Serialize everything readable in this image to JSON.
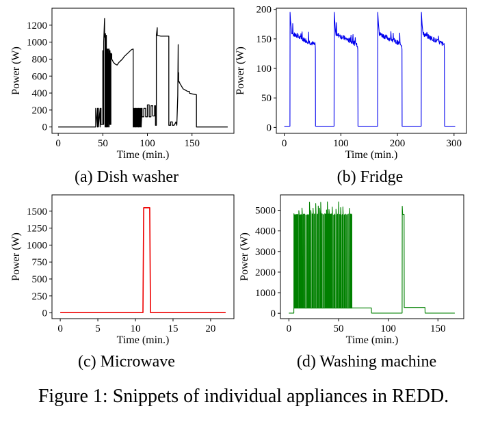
{
  "figure": {
    "caption": "Figure 1: Snippets of individual appliances in REDD."
  },
  "chart_data": [
    {
      "type": "line",
      "caption": "(a) Dish washer",
      "xlabel": "Time (min.)",
      "ylabel": "Power (W)",
      "xlim": [
        -7,
        197
      ],
      "ylim": [
        -75,
        1400
      ],
      "xticks": [
        0,
        50,
        100,
        150
      ],
      "yticks": [
        0,
        200,
        400,
        600,
        800,
        1000,
        1200
      ],
      "color": "#000000",
      "series": [
        {
          "x": [
            0,
            42,
            42,
            44,
            44,
            45,
            45,
            47,
            47,
            48,
            48,
            50,
            50,
            51,
            51,
            52,
            52,
            52.5,
            52.5,
            53,
            53,
            54,
            54,
            55,
            55,
            56,
            56,
            57,
            57,
            58,
            58,
            59,
            59,
            60,
            60,
            62,
            64,
            66,
            68,
            70,
            72,
            74,
            76,
            78,
            80,
            82,
            84,
            84,
            85,
            85,
            86,
            86,
            87,
            87,
            88,
            88,
            89,
            89,
            90,
            90,
            91,
            91,
            92,
            92,
            93,
            93,
            94,
            94,
            96,
            96,
            98,
            98,
            100,
            100,
            102,
            102,
            104,
            104,
            106,
            106,
            108,
            108,
            109,
            109,
            110,
            110,
            111,
            111,
            115,
            120,
            124,
            124,
            126,
            126,
            128,
            128,
            130,
            130,
            132,
            132,
            133,
            133,
            134,
            134,
            134.5,
            134.5,
            135,
            135,
            136,
            136,
            140,
            145,
            147,
            147,
            150,
            155,
            155,
            190
          ],
          "y": [
            0,
            0,
            220,
            0,
            220,
            220,
            0,
            220,
            0,
            220,
            30,
            30,
            900,
            30,
            1000,
            1280,
            1060,
            1060,
            0,
            1100,
            0,
            1080,
            0,
            920,
            0,
            920,
            0,
            920,
            0,
            900,
            30,
            30,
            870,
            860,
            800,
            760,
            740,
            730,
            760,
            780,
            800,
            830,
            850,
            870,
            890,
            910,
            920,
            0,
            220,
            0,
            220,
            0,
            220,
            0,
            220,
            0,
            220,
            0,
            220,
            0,
            220,
            0,
            220,
            0,
            220,
            0,
            220,
            120,
            120,
            220,
            220,
            120,
            120,
            260,
            260,
            120,
            120,
            250,
            250,
            130,
            130,
            250,
            250,
            20,
            20,
            1080,
            1170,
            1080,
            1070,
            1070,
            1070,
            20,
            20,
            60,
            60,
            20,
            20,
            20,
            60,
            60,
            20,
            20,
            370,
            370,
            970,
            640,
            640,
            530,
            530,
            520,
            450,
            420,
            420,
            400,
            390,
            380,
            0,
            0
          ]
        }
      ]
    },
    {
      "type": "line",
      "caption": "(b) Fridge",
      "xlabel": "Time (min.)",
      "ylabel": "Power (W)",
      "xlim": [
        -14,
        322
      ],
      "ylim": [
        -10,
        202
      ],
      "xticks": [
        0,
        100,
        200,
        300
      ],
      "yticks": [
        0,
        50,
        100,
        150,
        200
      ],
      "color": "#0000ee",
      "cycles": [
        [
          10,
          55
        ],
        [
          88,
          130
        ],
        [
          165,
          208
        ],
        [
          242,
          283
        ]
      ],
      "x_end": 302,
      "peak_w": 195,
      "steady_start_w": 160,
      "steady_end_w": 140,
      "idle_w": 2
    },
    {
      "type": "line",
      "caption": "(c) Microwave",
      "xlabel": "Time (min.)",
      "ylabel": "Power (W)",
      "xlim": [
        -1.1,
        23.1
      ],
      "ylim": [
        -85,
        1740
      ],
      "xticks": [
        0,
        5,
        10,
        15,
        20
      ],
      "yticks": [
        0,
        250,
        500,
        750,
        1000,
        1250,
        1500
      ],
      "color": "#ee0000",
      "series": [
        {
          "x": [
            0,
            11.0,
            11.1,
            11.9,
            12.0,
            22
          ],
          "y": [
            5,
            5,
            1550,
            1550,
            5,
            5
          ]
        }
      ]
    },
    {
      "type": "line",
      "caption": "(d) Washing machine",
      "xlabel": "Time (min.)",
      "ylabel": "Power (W)",
      "xlim": [
        -8.5,
        176
      ],
      "ylim": [
        -260,
        5750
      ],
      "xticks": [
        0,
        50,
        100,
        150
      ],
      "yticks": [
        0,
        1000,
        2000,
        3000,
        4000,
        5000
      ],
      "color": "#008000",
      "spin_range": [
        5,
        64
      ],
      "spin_level_w": 4800,
      "spin_low_w": 250,
      "spin_peaks_w": [
        5200,
        5300,
        5350,
        5400,
        5500
      ],
      "rinse_range": [
        64,
        83
      ],
      "rinse_w": 260,
      "late_spike": [
        114,
        116
      ],
      "late_spike_peak_w": 5200,
      "late_spike_level_w": 4800,
      "late_hold": [
        116,
        137
      ],
      "late_hold_w": 280,
      "x_end": 167,
      "idle_w": 10
    }
  ]
}
